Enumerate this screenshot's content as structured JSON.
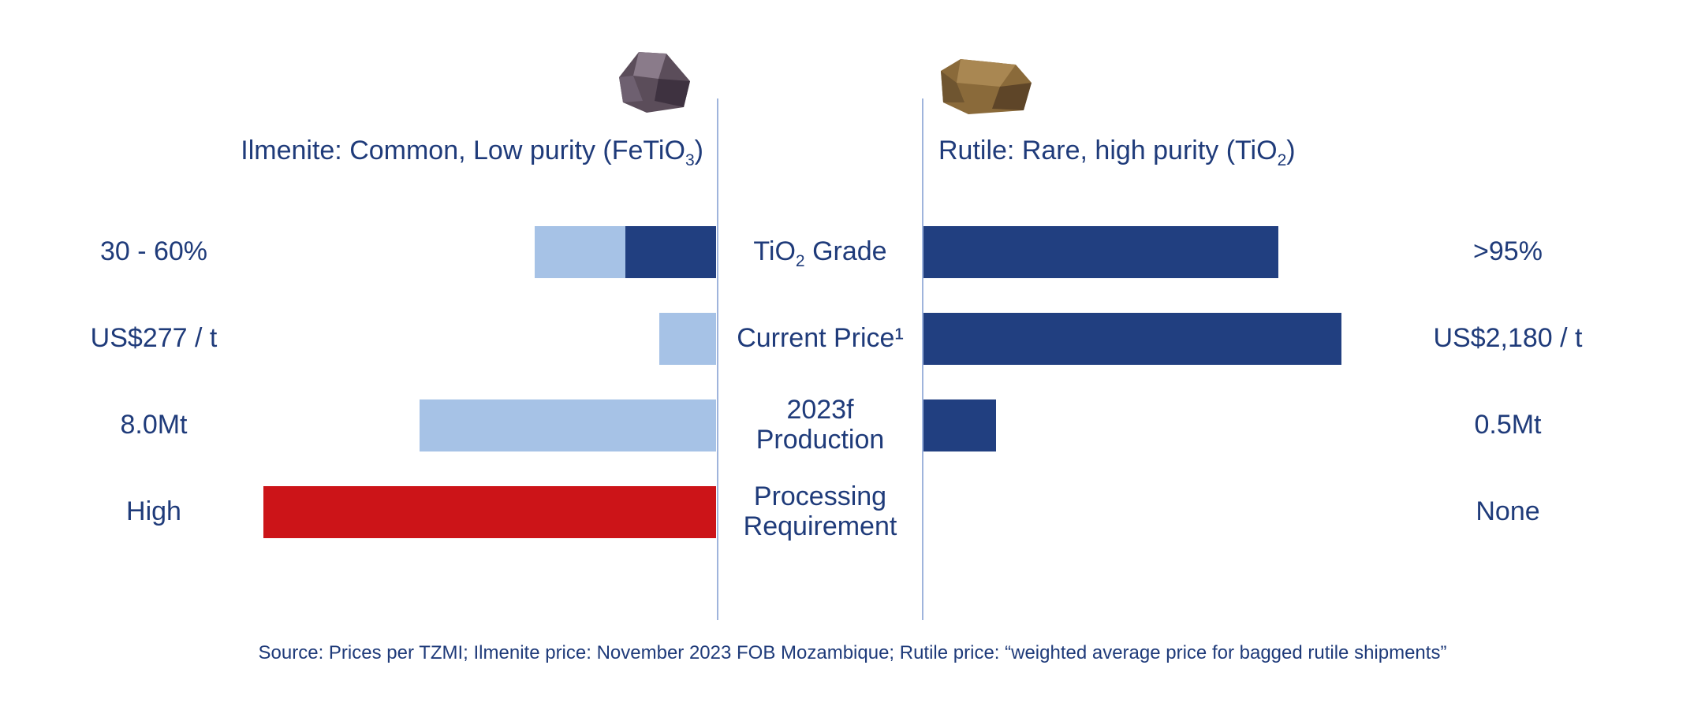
{
  "chart_data": {
    "type": "bar",
    "left": {
      "title_prefix": "Ilmenite: Common, Low purity (FeTiO",
      "title_sub": "3",
      "title_suffix": ")"
    },
    "right": {
      "title_prefix": "Rutile: Rare, high purity (TiO",
      "title_sub": "2",
      "title_suffix": ")"
    },
    "rows": [
      {
        "label_html": "TiO<sub>2</sub> Grade",
        "left_value": "30 - 60%",
        "right_value": ">95%",
        "left_segments": [
          {
            "from": 0,
            "to": 0.2,
            "color": "#213f80"
          },
          {
            "from": 0.2,
            "to": 0.4,
            "color": "#a6c2e6"
          }
        ],
        "right_segments": [
          {
            "from": 0,
            "to": 0.785,
            "color": "#213f80"
          }
        ]
      },
      {
        "label_html": "Current Price¹",
        "left_value": "US$277 / t",
        "right_value": "US$2,180 / t",
        "left_segments": [
          {
            "from": 0,
            "to": 0.125,
            "color": "#a6c2e6"
          }
        ],
        "right_segments": [
          {
            "from": 0,
            "to": 0.925,
            "color": "#213f80"
          }
        ]
      },
      {
        "label_html": "2023f<br>Production",
        "left_value": "8.0Mt",
        "right_value": "0.5Mt",
        "left_segments": [
          {
            "from": 0,
            "to": 0.655,
            "color": "#a6c2e6"
          }
        ],
        "right_segments": [
          {
            "from": 0,
            "to": 0.16,
            "color": "#213f80"
          }
        ]
      },
      {
        "label_html": "Processing<br>Requirement",
        "left_value": "High",
        "right_value": "None",
        "left_segments": [
          {
            "from": 0,
            "to": 1.0,
            "color": "#cc1418"
          }
        ],
        "right_segments": []
      }
    ],
    "source": "Source: Prices per TZMI; Ilmenite price: November 2023 FOB Mozambique; Rutile price: “weighted average price for bagged rutile shipments”"
  },
  "colors": {
    "dark_blue": "#213f80",
    "light_blue": "#a6c2e6",
    "red": "#cc1418",
    "text": "#1f3b7a",
    "divider": "#9fb4dc"
  }
}
